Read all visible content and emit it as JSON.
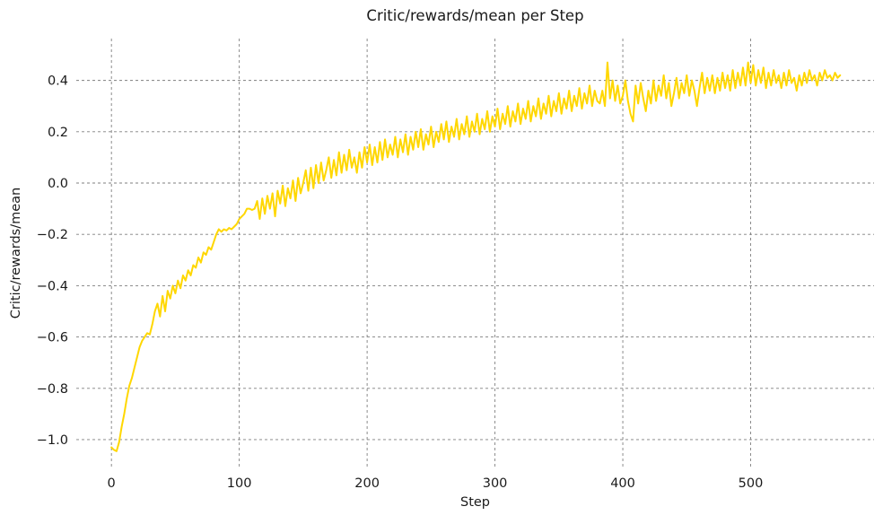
{
  "chart_data": {
    "type": "line",
    "title": "Critic/rewards/mean per Step",
    "xlabel": "Step",
    "ylabel": "Critic/rewards/mean",
    "series_name": "Critic/rewards/mean",
    "line_color": "#FFD700",
    "grid_color": "#7f7f7f",
    "text_color": "#1a1a1a",
    "background_color": "#ffffff",
    "grid": true,
    "legend": false,
    "xlim": [
      -27.5,
      596.5
    ],
    "ylim": [
      -1.105,
      0.563
    ],
    "x_ticks": [
      {
        "value": 0,
        "label": "0"
      },
      {
        "value": 100,
        "label": "100"
      },
      {
        "value": 200,
        "label": "200"
      },
      {
        "value": 300,
        "label": "300"
      },
      {
        "value": 400,
        "label": "400"
      },
      {
        "value": 500,
        "label": "500"
      }
    ],
    "y_ticks": [
      {
        "value": 0.4,
        "label": "0.4"
      },
      {
        "value": 0.2,
        "label": "0.2"
      },
      {
        "value": 0.0,
        "label": "0.0"
      },
      {
        "value": -0.2,
        "label": "−0.2"
      },
      {
        "value": -0.4,
        "label": "−0.4"
      },
      {
        "value": -0.6,
        "label": "−0.6"
      },
      {
        "value": -0.8,
        "label": "−0.8"
      },
      {
        "value": -1.0,
        "label": "−1.0"
      }
    ],
    "x_start": 0,
    "x_step": 2,
    "values": [
      -1.03,
      -1.04,
      -1.045,
      -1.01,
      -0.95,
      -0.9,
      -0.84,
      -0.79,
      -0.76,
      -0.72,
      -0.68,
      -0.64,
      -0.615,
      -0.6,
      -0.585,
      -0.59,
      -0.55,
      -0.5,
      -0.47,
      -0.52,
      -0.44,
      -0.5,
      -0.42,
      -0.45,
      -0.4,
      -0.43,
      -0.38,
      -0.41,
      -0.36,
      -0.38,
      -0.34,
      -0.36,
      -0.32,
      -0.33,
      -0.29,
      -0.31,
      -0.27,
      -0.28,
      -0.25,
      -0.26,
      -0.23,
      -0.2,
      -0.18,
      -0.19,
      -0.18,
      -0.185,
      -0.175,
      -0.18,
      -0.17,
      -0.16,
      -0.14,
      -0.13,
      -0.12,
      -0.1,
      -0.1,
      -0.105,
      -0.1,
      -0.07,
      -0.14,
      -0.06,
      -0.12,
      -0.05,
      -0.1,
      -0.04,
      -0.13,
      -0.03,
      -0.08,
      -0.01,
      -0.09,
      -0.02,
      -0.06,
      0.01,
      -0.07,
      0.02,
      -0.04,
      0.0,
      0.05,
      -0.03,
      0.06,
      -0.02,
      0.07,
      0.0,
      0.08,
      0.01,
      0.05,
      0.1,
      0.02,
      0.09,
      0.03,
      0.12,
      0.04,
      0.11,
      0.05,
      0.13,
      0.06,
      0.1,
      0.04,
      0.12,
      0.06,
      0.14,
      0.08,
      0.15,
      0.07,
      0.14,
      0.08,
      0.16,
      0.09,
      0.17,
      0.1,
      0.15,
      0.11,
      0.18,
      0.1,
      0.17,
      0.12,
      0.19,
      0.11,
      0.18,
      0.13,
      0.2,
      0.14,
      0.21,
      0.13,
      0.19,
      0.15,
      0.22,
      0.14,
      0.2,
      0.16,
      0.23,
      0.17,
      0.24,
      0.16,
      0.22,
      0.18,
      0.25,
      0.17,
      0.23,
      0.19,
      0.26,
      0.18,
      0.24,
      0.2,
      0.27,
      0.19,
      0.25,
      0.21,
      0.28,
      0.2,
      0.26,
      0.22,
      0.29,
      0.21,
      0.27,
      0.23,
      0.3,
      0.22,
      0.28,
      0.24,
      0.31,
      0.23,
      0.29,
      0.25,
      0.32,
      0.24,
      0.3,
      0.26,
      0.33,
      0.25,
      0.31,
      0.27,
      0.34,
      0.26,
      0.32,
      0.28,
      0.35,
      0.27,
      0.33,
      0.29,
      0.36,
      0.28,
      0.34,
      0.3,
      0.37,
      0.29,
      0.35,
      0.31,
      0.38,
      0.3,
      0.36,
      0.32,
      0.31,
      0.36,
      0.3,
      0.47,
      0.33,
      0.4,
      0.32,
      0.38,
      0.31,
      0.34,
      0.4,
      0.32,
      0.27,
      0.24,
      0.38,
      0.31,
      0.39,
      0.33,
      0.28,
      0.36,
      0.31,
      0.4,
      0.32,
      0.38,
      0.34,
      0.42,
      0.33,
      0.39,
      0.3,
      0.35,
      0.41,
      0.33,
      0.39,
      0.35,
      0.42,
      0.34,
      0.4,
      0.36,
      0.3,
      0.37,
      0.43,
      0.35,
      0.41,
      0.36,
      0.42,
      0.35,
      0.41,
      0.36,
      0.43,
      0.37,
      0.42,
      0.36,
      0.44,
      0.37,
      0.43,
      0.38,
      0.45,
      0.38,
      0.47,
      0.39,
      0.46,
      0.38,
      0.44,
      0.39,
      0.45,
      0.37,
      0.43,
      0.38,
      0.44,
      0.39,
      0.42,
      0.37,
      0.43,
      0.38,
      0.44,
      0.39,
      0.41,
      0.36,
      0.42,
      0.38,
      0.43,
      0.39,
      0.44,
      0.4,
      0.42,
      0.38,
      0.43,
      0.4,
      0.44,
      0.41,
      0.42,
      0.4,
      0.43,
      0.41,
      0.42
    ]
  }
}
